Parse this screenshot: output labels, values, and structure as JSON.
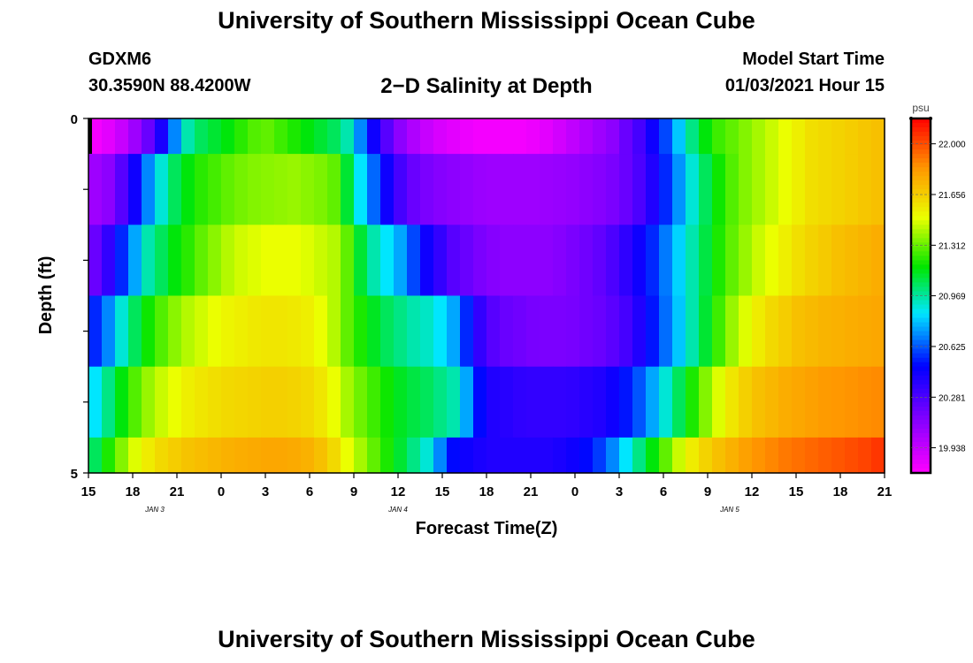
{
  "header": {
    "title": "University of Southern Mississippi Ocean Cube",
    "station": "GDXM6",
    "location": "30.3590N 88.4200W",
    "plot_title": "2−D Salinity at Depth",
    "model_start_label": "Model Start Time",
    "model_start_value": "01/03/2021 Hour 15"
  },
  "footer": {
    "title": "University of Southern Mississippi Ocean Cube"
  },
  "chart_data": {
    "type": "heatmap",
    "title": "2−D Salinity at Depth",
    "xlabel": "Forecast Time(Z)",
    "ylabel": "Depth (ft)",
    "x_tick_labels": [
      "15",
      "18",
      "21",
      "0",
      "3",
      "6",
      "9",
      "12",
      "15",
      "18",
      "21",
      "0",
      "3",
      "6",
      "9",
      "12",
      "15",
      "18",
      "21"
    ],
    "date_labels": [
      {
        "label": "JAN 3",
        "tick_index": 1.5
      },
      {
        "label": "JAN 4",
        "tick_index": 7
      },
      {
        "label": "JAN 5",
        "tick_index": 14.5
      }
    ],
    "y_tick_labels": [
      {
        "value": 0,
        "label": "0"
      },
      {
        "value": 5,
        "label": "5"
      }
    ],
    "ylim": [
      0,
      5
    ],
    "colorbar": {
      "unit": "psu",
      "min": 19.767,
      "max": 22.172,
      "ticks": [
        "22.000",
        "21.656",
        "21.312",
        "20.969",
        "20.625",
        "20.281",
        "19.938"
      ]
    },
    "rows": [
      {
        "depth_band": "0-0.5",
        "values": [
          19.8,
          19.85,
          19.93,
          20.05,
          20.2,
          20.42,
          20.7,
          20.95,
          21.05,
          21.1,
          21.15,
          21.22,
          21.28,
          21.3,
          21.25,
          21.2,
          21.15,
          21.1,
          21.05,
          20.95,
          20.7,
          20.45,
          20.25,
          20.1,
          20.0,
          19.93,
          19.88,
          19.85,
          19.82,
          19.8,
          19.8,
          19.8,
          19.8,
          19.82,
          19.85,
          19.9,
          19.95,
          20.0,
          20.05,
          20.1,
          20.2,
          20.3,
          20.45,
          20.6,
          20.8,
          21.0,
          21.15,
          21.25,
          21.3,
          21.35,
          21.4,
          21.45,
          21.5,
          21.55,
          21.6,
          21.62,
          21.64,
          21.66,
          21.68,
          21.7
        ]
      },
      {
        "depth_band": "0.5-1.5",
        "values": [
          20.05,
          20.1,
          20.25,
          20.45,
          20.7,
          20.9,
          21.05,
          21.15,
          21.22,
          21.26,
          21.3,
          21.33,
          21.35,
          21.36,
          21.37,
          21.38,
          21.36,
          21.34,
          21.3,
          21.1,
          20.85,
          20.65,
          20.45,
          20.3,
          20.2,
          20.15,
          20.12,
          20.1,
          20.08,
          20.06,
          20.05,
          20.05,
          20.05,
          20.05,
          20.06,
          20.07,
          20.08,
          20.1,
          20.12,
          20.15,
          20.2,
          20.28,
          20.4,
          20.55,
          20.72,
          20.9,
          21.05,
          21.18,
          21.28,
          21.35,
          21.4,
          21.45,
          21.5,
          21.55,
          21.6,
          21.62,
          21.64,
          21.66,
          21.68,
          21.7
        ]
      },
      {
        "depth_band": "1.5-2.5",
        "values": [
          20.2,
          20.35,
          20.55,
          20.75,
          20.95,
          21.05,
          21.15,
          21.22,
          21.3,
          21.36,
          21.42,
          21.46,
          21.48,
          21.5,
          21.5,
          21.5,
          21.48,
          21.45,
          21.42,
          21.3,
          21.1,
          20.95,
          20.85,
          20.75,
          20.6,
          20.45,
          20.35,
          20.25,
          20.2,
          20.15,
          20.12,
          20.1,
          20.1,
          20.1,
          20.1,
          20.12,
          20.15,
          20.18,
          20.22,
          20.28,
          20.36,
          20.45,
          20.55,
          20.68,
          20.82,
          20.95,
          21.08,
          21.2,
          21.3,
          21.38,
          21.45,
          21.5,
          21.55,
          21.6,
          21.64,
          21.67,
          21.7,
          21.72,
          21.74,
          21.76
        ]
      },
      {
        "depth_band": "2.5-3.5",
        "values": [
          20.55,
          20.7,
          20.9,
          21.05,
          21.18,
          21.28,
          21.36,
          21.42,
          21.46,
          21.5,
          21.53,
          21.55,
          21.57,
          21.58,
          21.58,
          21.57,
          21.55,
          21.5,
          21.42,
          21.3,
          21.2,
          21.12,
          21.05,
          21.0,
          20.95,
          20.92,
          20.85,
          20.75,
          20.55,
          20.35,
          20.25,
          20.2,
          20.18,
          20.16,
          20.15,
          20.15,
          20.16,
          20.18,
          20.2,
          20.24,
          20.3,
          20.4,
          20.52,
          20.66,
          20.8,
          20.95,
          21.1,
          21.25,
          21.38,
          21.48,
          21.56,
          21.62,
          21.66,
          21.7,
          21.72,
          21.74,
          21.75,
          21.76,
          21.77,
          21.78
        ]
      },
      {
        "depth_band": "3.5-4.5",
        "values": [
          20.85,
          21.0,
          21.15,
          21.28,
          21.38,
          21.45,
          21.5,
          21.55,
          21.58,
          21.6,
          21.62,
          21.63,
          21.64,
          21.65,
          21.65,
          21.64,
          21.62,
          21.58,
          21.5,
          21.4,
          21.32,
          21.25,
          21.18,
          21.12,
          21.08,
          21.05,
          21.0,
          20.95,
          20.75,
          20.5,
          20.4,
          20.38,
          20.36,
          20.35,
          20.35,
          20.35,
          20.36,
          20.38,
          20.4,
          20.45,
          20.52,
          20.62,
          20.75,
          20.9,
          21.05,
          21.2,
          21.35,
          21.48,
          21.58,
          21.65,
          21.7,
          21.73,
          21.76,
          21.78,
          21.8,
          21.82,
          21.83,
          21.84,
          21.85,
          21.86
        ]
      },
      {
        "depth_band": "4.5-5",
        "values": [
          21.05,
          21.2,
          21.35,
          21.48,
          21.56,
          21.62,
          21.66,
          21.69,
          21.71,
          21.73,
          21.75,
          21.76,
          21.77,
          21.78,
          21.78,
          21.77,
          21.75,
          21.7,
          21.62,
          21.5,
          21.4,
          21.3,
          21.2,
          21.1,
          21.0,
          20.9,
          20.7,
          20.5,
          20.45,
          20.42,
          20.4,
          20.4,
          20.4,
          20.4,
          20.4,
          20.42,
          20.45,
          20.5,
          20.58,
          20.7,
          20.85,
          21.0,
          21.15,
          21.3,
          21.45,
          21.56,
          21.64,
          21.7,
          21.75,
          21.8,
          21.84,
          21.87,
          21.9,
          21.92,
          21.94,
          21.96,
          21.98,
          22.0,
          22.02,
          22.05
        ]
      }
    ]
  }
}
